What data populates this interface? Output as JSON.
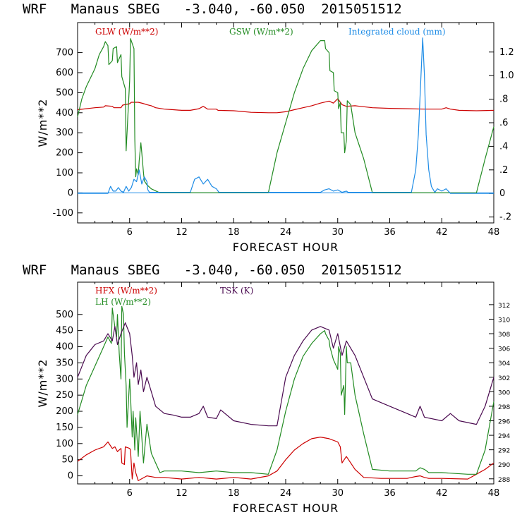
{
  "chart_data": [
    {
      "type": "line",
      "title": "WRF   Manaus SBEG   -3.040, -60.050  2015051512",
      "xlabel": "FORECAST HOUR",
      "ylabel": "W/m**2",
      "xlim": [
        0,
        48
      ],
      "ylim": [
        -150,
        850
      ],
      "y2lim": [
        -0.25,
        1.45
      ],
      "xticks": [
        6,
        12,
        18,
        24,
        30,
        36,
        42,
        48
      ],
      "yticks": [
        -100,
        0,
        100,
        200,
        300,
        400,
        500,
        600,
        700
      ],
      "y2ticks": [
        -0.2,
        0,
        0.2,
        0.4,
        0.6,
        0.8,
        1.0,
        1.2
      ],
      "y2tick_labels": [
        "-.2",
        "0",
        ".2",
        ".4",
        ".6",
        ".8",
        "1.0",
        "1.2"
      ],
      "zero_line": 0,
      "series": [
        {
          "name": "GLW (W/m**2)",
          "color": "#cc0000",
          "axis": "left",
          "x": [
            0,
            1,
            2,
            3,
            3.2,
            4,
            4.2,
            5,
            5.2,
            6,
            6.2,
            7,
            7.5,
            8,
            8.5,
            9,
            10,
            11,
            12,
            13,
            14,
            14.5,
            15,
            16,
            16.2,
            18,
            20,
            22,
            23,
            24,
            25,
            26,
            27,
            28,
            29,
            29.5,
            30,
            30.5,
            31,
            32,
            33,
            34,
            36,
            38,
            40,
            42,
            42.5,
            43,
            44,
            46,
            48
          ],
          "y": [
            415,
            420,
            425,
            428,
            435,
            432,
            425,
            425,
            438,
            445,
            452,
            452,
            447,
            440,
            435,
            425,
            418,
            415,
            412,
            412,
            420,
            432,
            418,
            418,
            412,
            410,
            402,
            400,
            400,
            405,
            415,
            425,
            435,
            448,
            458,
            448,
            470,
            440,
            432,
            435,
            430,
            425,
            422,
            420,
            418,
            418,
            425,
            418,
            412,
            410,
            412
          ]
        },
        {
          "name": "GSW (W/m**2)",
          "color": "#228b22",
          "axis": "left",
          "x": [
            0,
            0.5,
            1,
            2,
            2.5,
            3,
            3.2,
            3.5,
            3.6,
            4,
            4.1,
            4.5,
            4.6,
            5,
            5.1,
            5.5,
            5.6,
            6,
            6.1,
            6.5,
            6.6,
            6.7,
            6.8,
            7,
            7.1,
            7.3,
            7.4,
            7.6,
            7.7,
            8,
            8.5,
            9,
            9.5,
            10,
            22,
            23,
            24,
            25,
            26,
            27,
            28,
            28.5,
            28.6,
            29,
            29.1,
            29.5,
            29.6,
            30,
            30.1,
            30.3,
            30.4,
            30.7,
            30.8,
            31,
            31.1,
            31.5,
            32,
            33,
            34,
            46,
            47,
            48
          ],
          "y": [
            380,
            470,
            530,
            620,
            690,
            730,
            755,
            735,
            640,
            660,
            720,
            730,
            650,
            690,
            580,
            520,
            210,
            560,
            770,
            720,
            270,
            80,
            120,
            90,
            160,
            250,
            200,
            100,
            60,
            40,
            20,
            10,
            0,
            0,
            0,
            200,
            350,
            500,
            620,
            710,
            760,
            760,
            720,
            700,
            610,
            600,
            510,
            500,
            420,
            450,
            300,
            300,
            200,
            260,
            460,
            440,
            300,
            170,
            0,
            0,
            170,
            330
          ]
        },
        {
          "name": "Integrated cloud (mm)",
          "color": "#1e8ce6",
          "axis": "right",
          "x": [
            0,
            3.5,
            3.8,
            4.1,
            4.4,
            4.7,
            5.0,
            5.3,
            5.6,
            5.9,
            6.2,
            6.5,
            6.8,
            7.1,
            7.4,
            7.7,
            8.0,
            8.1,
            8.3,
            13,
            13.5,
            14,
            14.5,
            15,
            15.5,
            16,
            16.3,
            28,
            28.5,
            29,
            29.5,
            30,
            30.5,
            31,
            31.2,
            38.5,
            39,
            39.3,
            39.6,
            39.8,
            40,
            40.2,
            40.5,
            40.8,
            41.2,
            41.5,
            42,
            42.5,
            43,
            48
          ],
          "y": [
            0,
            0,
            0.06,
            0.02,
            0.02,
            0.05,
            0.02,
            0.01,
            0.06,
            0.02,
            0.05,
            0.12,
            0.1,
            0.2,
            0.08,
            0.14,
            0.1,
            0.03,
            0.01,
            0.01,
            0.12,
            0.14,
            0.08,
            0.12,
            0.06,
            0.04,
            0.01,
            0.01,
            0.03,
            0.04,
            0.02,
            0.03,
            0.01,
            0.02,
            0.01,
            0.01,
            0.2,
            0.5,
            1.0,
            1.32,
            1.0,
            0.5,
            0.2,
            0.06,
            0.01,
            0.04,
            0.02,
            0.04,
            0,
            0
          ]
        }
      ]
    },
    {
      "type": "line",
      "title": "WRF   Manaus SBEG   -3.040, -60.050  2015051512",
      "xlabel": "FORECAST HOUR",
      "ylabel": "W/m**2",
      "xlim": [
        0,
        48
      ],
      "ylim": [
        -25,
        600
      ],
      "y2lim": [
        287.3,
        315.1
      ],
      "xticks": [
        6,
        12,
        18,
        24,
        30,
        36,
        42,
        48
      ],
      "yticks": [
        0,
        50,
        100,
        150,
        200,
        250,
        300,
        350,
        400,
        450,
        500
      ],
      "y2ticks": [
        288,
        290,
        292,
        294,
        296,
        298,
        300,
        302,
        304,
        306,
        308,
        310,
        312
      ],
      "series": [
        {
          "name": "HFX (W/m**2)",
          "color": "#cc0000",
          "axis": "left",
          "x": [
            0,
            1,
            2,
            3,
            3.5,
            4,
            4.3,
            4.6,
            5,
            5.1,
            5.4,
            5.5,
            6,
            6.1,
            6.3,
            6.5,
            6.7,
            7,
            8,
            9,
            10,
            12,
            14,
            16,
            18,
            20,
            22,
            23,
            24,
            25,
            26,
            27,
            28,
            29,
            30,
            30.3,
            30.5,
            31,
            32,
            33,
            35,
            38,
            39,
            39.5,
            40,
            40.5,
            42,
            45,
            46,
            47,
            48
          ],
          "y": [
            45,
            65,
            80,
            90,
            105,
            85,
            90,
            75,
            85,
            40,
            35,
            90,
            85,
            80,
            -10,
            40,
            10,
            -15,
            0,
            -5,
            -5,
            -10,
            -5,
            -10,
            -5,
            -10,
            0,
            15,
            50,
            80,
            100,
            115,
            120,
            115,
            105,
            90,
            40,
            60,
            20,
            -5,
            -8,
            -8,
            -2,
            0,
            -5,
            -8,
            -8,
            -10,
            5,
            20,
            40
          ]
        },
        {
          "name": "LH  (W/m**2)",
          "color": "#228b22",
          "axis": "left",
          "x": [
            0,
            1,
            2,
            3,
            3.5,
            3.9,
            4,
            4.3,
            4.5,
            4.6,
            4.8,
            5,
            5.1,
            5.3,
            5.4,
            5.6,
            5.7,
            6,
            6.1,
            6.3,
            6.4,
            6.6,
            6.7,
            7,
            7.2,
            7.4,
            7.6,
            8,
            8.5,
            9,
            9.5,
            10,
            12,
            14,
            16,
            18,
            20,
            22,
            23,
            24,
            25,
            26,
            27,
            28,
            28.5,
            28.6,
            29,
            29.1,
            29.5,
            30,
            30.1,
            30.3,
            30.4,
            30.7,
            30.8,
            31,
            31.1,
            31.5,
            32,
            33,
            34,
            36,
            38,
            39,
            39.5,
            40,
            40.5,
            42,
            45,
            46,
            47,
            48
          ],
          "y": [
            190,
            280,
            340,
            400,
            430,
            410,
            520,
            460,
            430,
            500,
            380,
            300,
            525,
            500,
            380,
            280,
            150,
            300,
            250,
            120,
            200,
            80,
            180,
            60,
            200,
            120,
            40,
            160,
            70,
            40,
            10,
            15,
            15,
            10,
            15,
            10,
            10,
            5,
            80,
            200,
            300,
            370,
            410,
            440,
            450,
            440,
            420,
            400,
            360,
            330,
            400,
            380,
            250,
            280,
            190,
            400,
            350,
            350,
            250,
            130,
            20,
            15,
            15,
            15,
            25,
            20,
            10,
            10,
            5,
            5,
            80,
            230
          ]
        },
        {
          "name": "TSK (K)",
          "color": "#4a0a50",
          "axis": "right",
          "x": [
            0,
            1,
            2,
            3,
            3.5,
            4,
            4.3,
            4.6,
            5,
            5.5,
            6,
            6.3,
            6.5,
            6.8,
            7,
            7.3,
            7.6,
            8,
            8.5,
            9,
            9.5,
            10,
            11,
            12,
            13,
            14,
            14.5,
            15,
            16,
            16.5,
            18,
            20,
            22,
            23,
            24,
            25,
            26,
            27,
            28,
            29,
            29.5,
            30,
            30.5,
            31,
            32,
            33,
            34,
            36,
            38,
            39,
            39.5,
            40,
            42,
            43,
            44,
            46,
            47,
            48
          ],
          "y": [
            302,
            305,
            306.5,
            307,
            308,
            307,
            309,
            306.5,
            308,
            309.5,
            308,
            305,
            302,
            304,
            301,
            303,
            300,
            302,
            300,
            298,
            297.5,
            297,
            296.8,
            296.5,
            296.5,
            297,
            298,
            296.5,
            296.3,
            297.5,
            296,
            295.5,
            295.3,
            295.3,
            302,
            305,
            307,
            308.5,
            309,
            308.5,
            306,
            308,
            305,
            307,
            305,
            302,
            299,
            298,
            297,
            296.5,
            298,
            296.5,
            296,
            297,
            296,
            295.5,
            298,
            302
          ]
        }
      ]
    }
  ]
}
